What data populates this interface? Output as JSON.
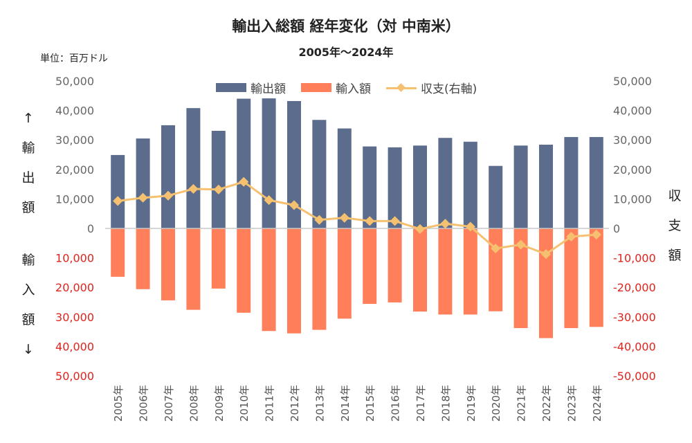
{
  "chart_data": {
    "type": "bar",
    "title": "輸出入総額 経年変化（対 中南米）",
    "subtitle": "2005年～2024年",
    "unit": "単位：百万ドル",
    "left_axis_label_upper": [
      "↑",
      "輸",
      "出",
      "額"
    ],
    "left_axis_label_lower": [
      "輸",
      "入",
      "額",
      "↓"
    ],
    "right_axis_label": [
      "収",
      "支",
      "額"
    ],
    "categories": [
      "2005年",
      "2006年",
      "2007年",
      "2008年",
      "2009年",
      "2010年",
      "2011年",
      "2012年",
      "2013年",
      "2014年",
      "2015年",
      "2016年",
      "2017年",
      "2018年",
      "2019年",
      "2020年",
      "2021年",
      "2022年",
      "2023年",
      "2024年"
    ],
    "y_left_ticks": [
      "50,000",
      "40,000",
      "30,000",
      "20,000",
      "10,000",
      "0",
      "10,000",
      "20,000",
      "30,000",
      "40,000",
      "50,000"
    ],
    "y_right_ticks": [
      "50,000",
      "40,000",
      "30,000",
      "20,000",
      "10,000",
      "0",
      "-10,000",
      "-20,000",
      "-30,000",
      "-40,000",
      "-50,000"
    ],
    "ylim": [
      -50000,
      50000
    ],
    "legend_position": "top-center",
    "grid": false,
    "series": [
      {
        "name": "輸出額",
        "kind": "bar",
        "color": "#5b6c8c",
        "values": [
          24900,
          30500,
          35000,
          40800,
          33100,
          44000,
          44100,
          43200,
          36800,
          33900,
          27800,
          27500,
          28100,
          30700,
          29400,
          21200,
          28100,
          28400,
          31000,
          31000
        ]
      },
      {
        "name": "輸入額",
        "kind": "bar",
        "color": "#ff7f5a",
        "values": [
          -16400,
          -20600,
          -24400,
          -27600,
          -20400,
          -28600,
          -34800,
          -35600,
          -34400,
          -30600,
          -25600,
          -25100,
          -28200,
          -29200,
          -29200,
          -28100,
          -33800,
          -37200,
          -33800,
          -33400
        ]
      },
      {
        "name": "収支(右軸)",
        "kind": "line",
        "axis": "right",
        "color": "#f5c06f",
        "values": [
          9300,
          10400,
          11100,
          13400,
          13200,
          15800,
          9600,
          7900,
          2900,
          3600,
          2500,
          2500,
          -200,
          1600,
          600,
          -6800,
          -5500,
          -8700,
          -2800,
          -2100
        ]
      }
    ]
  }
}
